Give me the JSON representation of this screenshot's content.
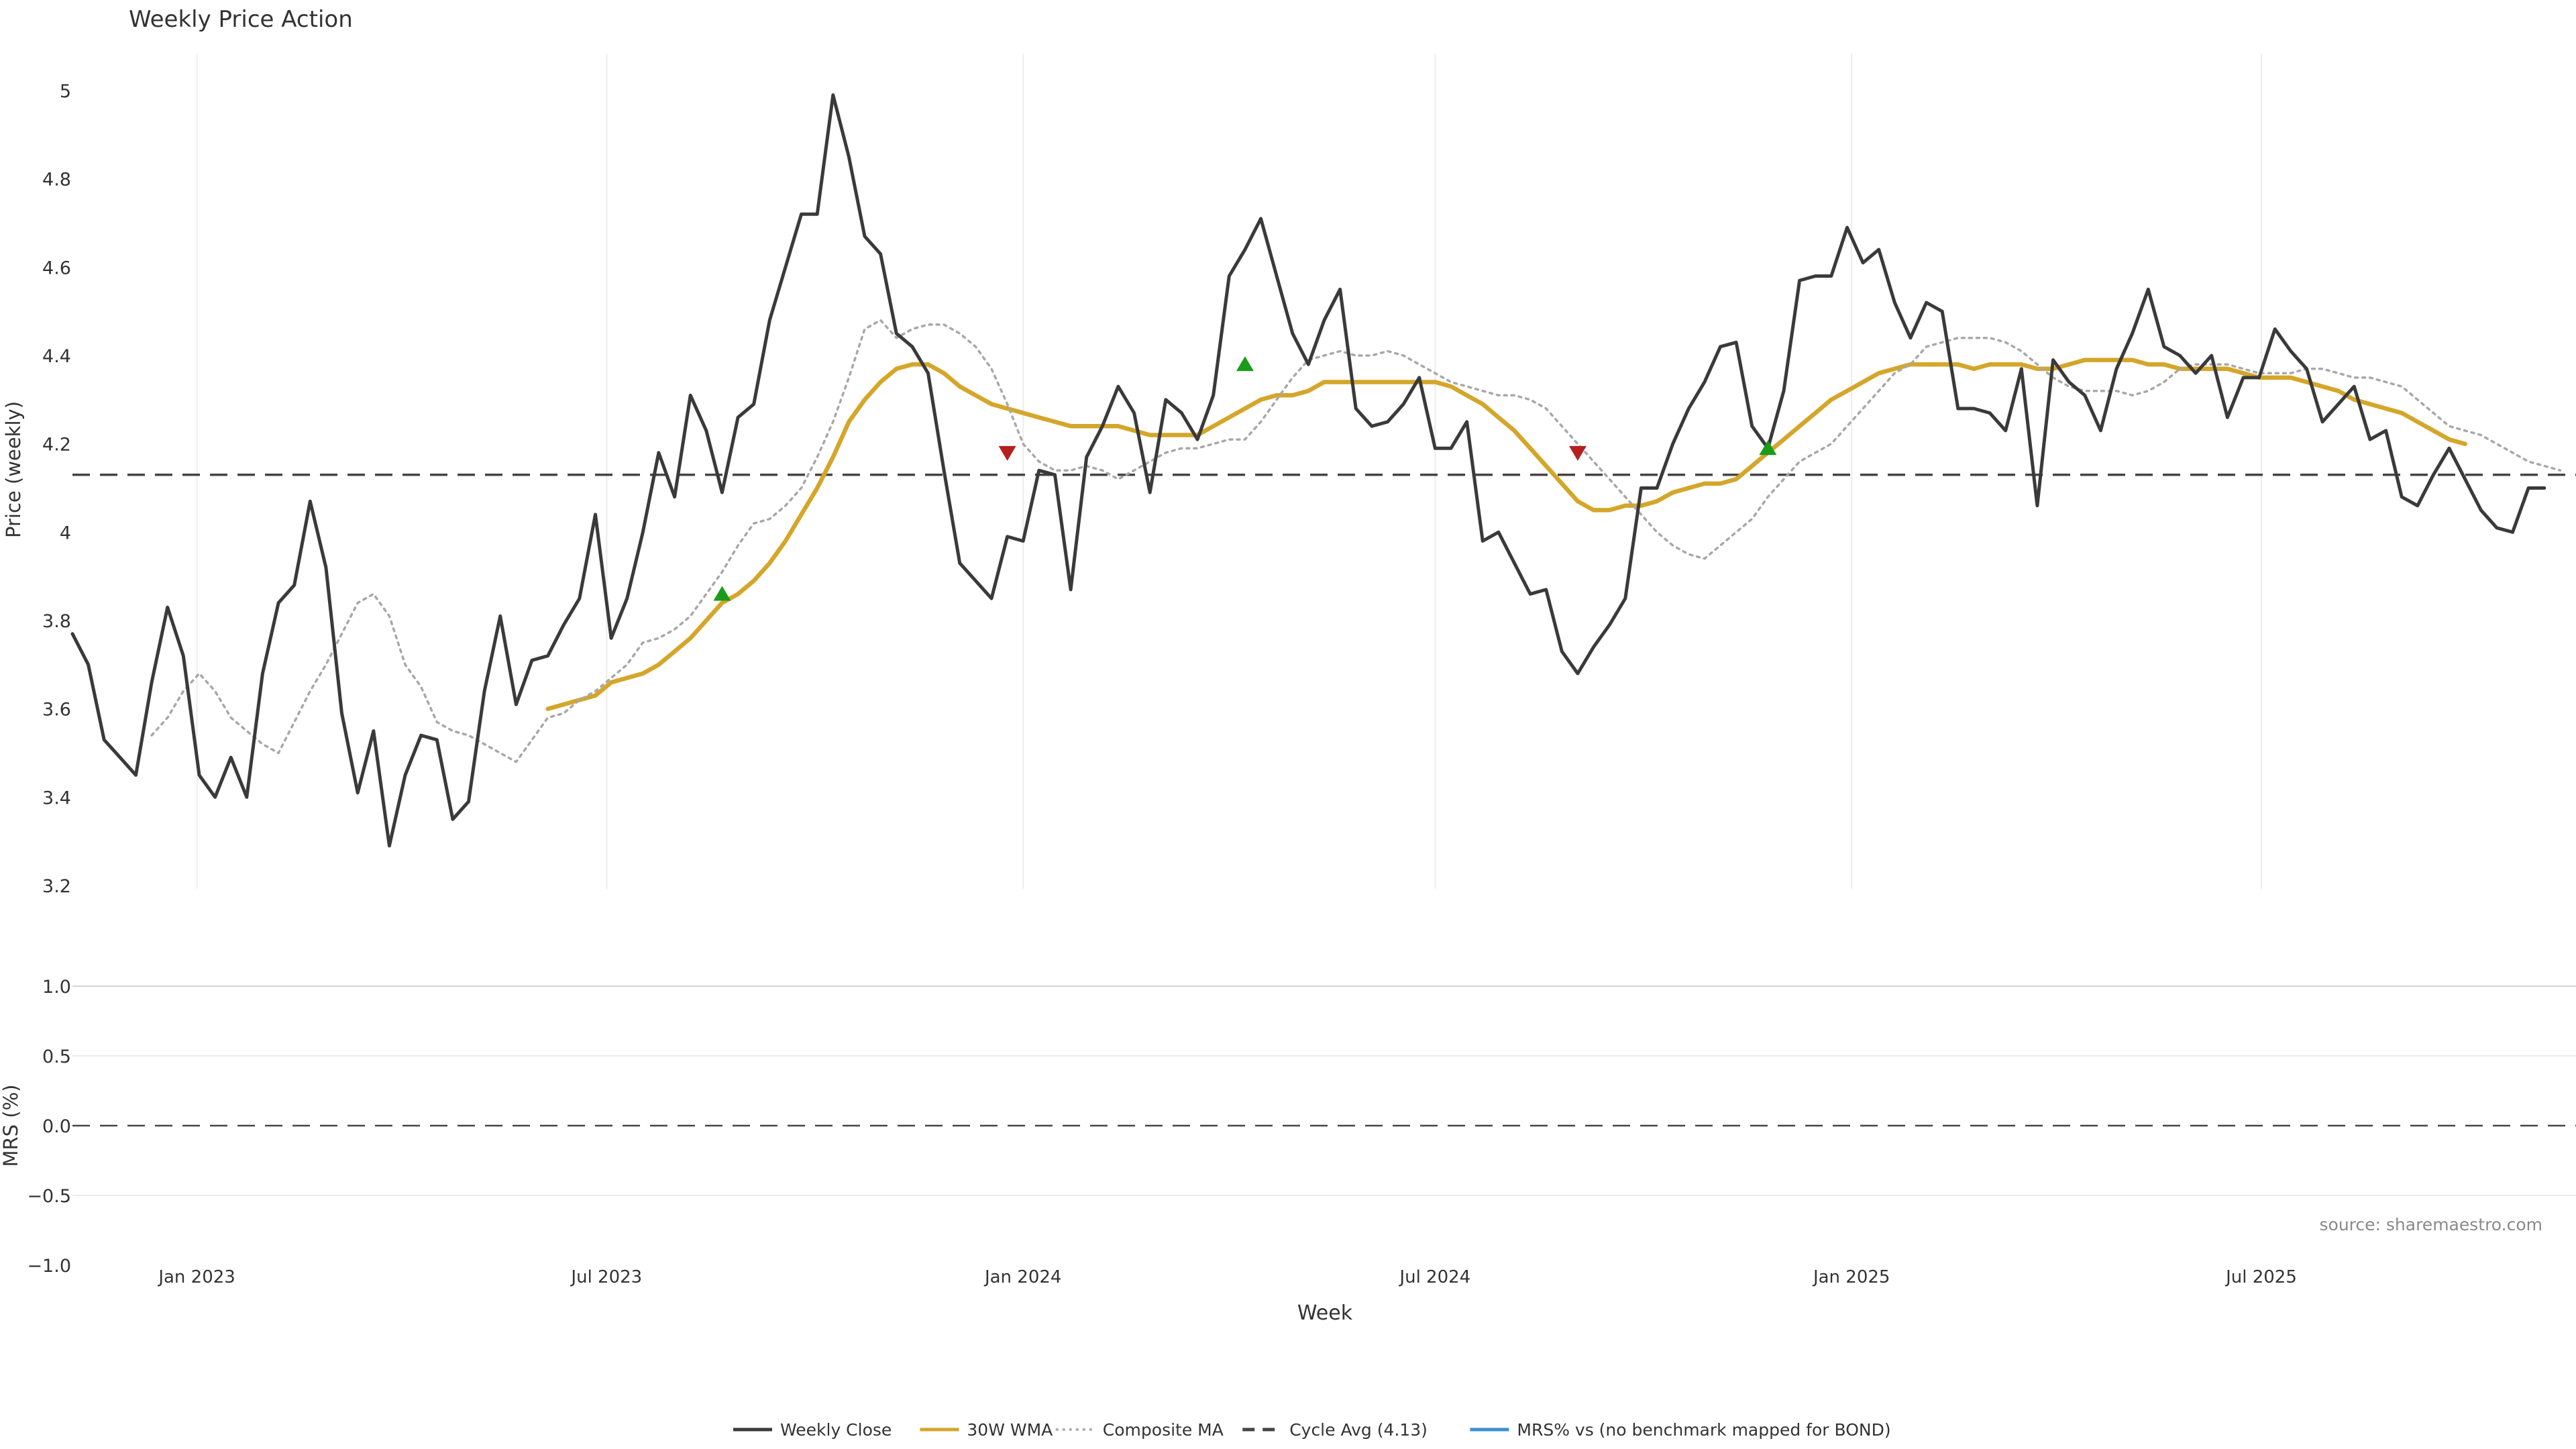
{
  "chart_data": {
    "type": "line",
    "title": "Weekly Price Action",
    "xlabel": "Week",
    "x_ticks": [
      "Jan 2023",
      "Jul 2023",
      "Jan 2024",
      "Jul 2024",
      "Jan 2025",
      "Jul 2025"
    ],
    "x_range": [
      "2022-11-07",
      "2025-11-17"
    ],
    "price_panel": {
      "ylabel": "Price (weekly)",
      "ylim": [
        3.2,
        5.0
      ],
      "y_ticks": [
        "5",
        "4.8",
        "4.6",
        "4.4",
        "4.2",
        "4",
        "3.8",
        "3.6",
        "3.4",
        "3.2"
      ],
      "cycle_avg": 4.13,
      "series": [
        {
          "name": "Weekly Close",
          "color": "#3a3a3a",
          "style": "solid",
          "start": "2022-11-07",
          "values": [
            3.77,
            3.7,
            3.53,
            3.49,
            3.45,
            3.66,
            3.83,
            3.72,
            3.45,
            3.4,
            3.49,
            3.4,
            3.68,
            3.84,
            3.88,
            4.07,
            3.92,
            3.59,
            3.41,
            3.55,
            3.29,
            3.45,
            3.54,
            3.53,
            3.35,
            3.39,
            3.64,
            3.81,
            3.61,
            3.71,
            3.72,
            3.79,
            3.85,
            4.04,
            3.76,
            3.85,
            4.0,
            4.18,
            4.08,
            4.31,
            4.23,
            4.09,
            4.26,
            4.29,
            4.48,
            4.6,
            4.72,
            4.72,
            4.99,
            4.85,
            4.67,
            4.63,
            4.45,
            4.42,
            4.36,
            4.14,
            3.93,
            3.89,
            3.85,
            3.99,
            3.98,
            4.14,
            4.13,
            3.87,
            4.17,
            4.24,
            4.33,
            4.27,
            4.09,
            4.3,
            4.27,
            4.21,
            4.31,
            4.58,
            4.64,
            4.71,
            4.58,
            4.45,
            4.38,
            4.48,
            4.55,
            4.28,
            4.24,
            4.25,
            4.29,
            4.35,
            4.19,
            4.19,
            4.25,
            3.98,
            4.0,
            3.93,
            3.86,
            3.87,
            3.73,
            3.68,
            3.74,
            3.79,
            3.85,
            4.1,
            4.1,
            4.2,
            4.28,
            4.34,
            4.42,
            4.43,
            4.24,
            4.19,
            4.32,
            4.57,
            4.58,
            4.58,
            4.69,
            4.61,
            4.64,
            4.52,
            4.44,
            4.52,
            4.5,
            4.28,
            4.28,
            4.27,
            4.23,
            4.37,
            4.06,
            4.39,
            4.34,
            4.31,
            4.23,
            4.37,
            4.45,
            4.55,
            4.42,
            4.4,
            4.36,
            4.4,
            4.26,
            4.35,
            4.35,
            4.46,
            4.41,
            4.37,
            4.25,
            4.29,
            4.33,
            4.21,
            4.23,
            4.08,
            4.06,
            4.13,
            4.19,
            4.12,
            4.05,
            4.01,
            4.0,
            4.1,
            4.1
          ]
        },
        {
          "name": "30W WMA",
          "color": "#d4a62a",
          "style": "solid",
          "start": "2023-06-05",
          "values": [
            3.6,
            3.61,
            3.62,
            3.63,
            3.66,
            3.67,
            3.68,
            3.7,
            3.73,
            3.76,
            3.8,
            3.84,
            3.86,
            3.89,
            3.93,
            3.98,
            4.04,
            4.1,
            4.17,
            4.25,
            4.3,
            4.34,
            4.37,
            4.38,
            4.38,
            4.36,
            4.33,
            4.31,
            4.29,
            4.28,
            4.27,
            4.26,
            4.25,
            4.24,
            4.24,
            4.24,
            4.24,
            4.23,
            4.22,
            4.22,
            4.22,
            4.22,
            4.24,
            4.26,
            4.28,
            4.3,
            4.31,
            4.31,
            4.32,
            4.34,
            4.34,
            4.34,
            4.34,
            4.34,
            4.34,
            4.34,
            4.34,
            4.33,
            4.31,
            4.29,
            4.26,
            4.23,
            4.19,
            4.15,
            4.11,
            4.07,
            4.05,
            4.05,
            4.06,
            4.06,
            4.07,
            4.09,
            4.1,
            4.11,
            4.11,
            4.12,
            4.15,
            4.18,
            4.21,
            4.24,
            4.27,
            4.3,
            4.32,
            4.34,
            4.36,
            4.37,
            4.38,
            4.38,
            4.38,
            4.38,
            4.37,
            4.38,
            4.38,
            4.38,
            4.37,
            4.37,
            4.38,
            4.39,
            4.39,
            4.39,
            4.39,
            4.38,
            4.38,
            4.37,
            4.37,
            4.37,
            4.37,
            4.36,
            4.35,
            4.35,
            4.35,
            4.34,
            4.33,
            4.32,
            4.3,
            4.29,
            4.28,
            4.27,
            4.25,
            4.23,
            4.21,
            4.2
          ]
        },
        {
          "name": "Composite MA",
          "color": "#a8a8a8",
          "style": "dotted",
          "start": "2022-12-12",
          "values": [
            3.54,
            3.58,
            3.64,
            3.68,
            3.64,
            3.58,
            3.55,
            3.52,
            3.5,
            3.57,
            3.64,
            3.7,
            3.77,
            3.84,
            3.86,
            3.81,
            3.7,
            3.65,
            3.57,
            3.55,
            3.54,
            3.52,
            3.5,
            3.48,
            3.53,
            3.58,
            3.59,
            3.62,
            3.64,
            3.67,
            3.7,
            3.75,
            3.76,
            3.78,
            3.81,
            3.86,
            3.91,
            3.97,
            4.02,
            4.03,
            4.06,
            4.1,
            4.17,
            4.25,
            4.35,
            4.46,
            4.48,
            4.44,
            4.46,
            4.47,
            4.47,
            4.45,
            4.42,
            4.37,
            4.29,
            4.2,
            4.16,
            4.14,
            4.14,
            4.15,
            4.14,
            4.12,
            4.14,
            4.16,
            4.18,
            4.19,
            4.19,
            4.2,
            4.21,
            4.21,
            4.25,
            4.3,
            4.35,
            4.39,
            4.4,
            4.41,
            4.4,
            4.4,
            4.41,
            4.4,
            4.38,
            4.36,
            4.34,
            4.33,
            4.32,
            4.31,
            4.31,
            4.3,
            4.28,
            4.24,
            4.2,
            4.16,
            4.12,
            4.08,
            4.04,
            4.0,
            3.97,
            3.95,
            3.94,
            3.97,
            4.0,
            4.03,
            4.08,
            4.12,
            4.16,
            4.18,
            4.2,
            4.24,
            4.28,
            4.32,
            4.36,
            4.38,
            4.42,
            4.43,
            4.44,
            4.44,
            4.44,
            4.43,
            4.41,
            4.38,
            4.35,
            4.33,
            4.32,
            4.32,
            4.32,
            4.31,
            4.32,
            4.34,
            4.37,
            4.38,
            4.38,
            4.38,
            4.37,
            4.36,
            4.36,
            4.36,
            4.37,
            4.37,
            4.36,
            4.35,
            4.35,
            4.34,
            4.33,
            4.3,
            4.27,
            4.24,
            4.23,
            4.22,
            4.2,
            4.18,
            4.16,
            4.15,
            4.14
          ]
        }
      ],
      "signals": [
        {
          "type": "buy",
          "date": "2023-08-21",
          "value": 3.86,
          "color": "#1a9b1a"
        },
        {
          "type": "sell",
          "date": "2023-12-25",
          "value": 4.18,
          "color": "#b51f1f"
        },
        {
          "type": "buy",
          "date": "2024-04-08",
          "value": 4.38,
          "color": "#1a9b1a"
        },
        {
          "type": "sell",
          "date": "2024-09-02",
          "value": 4.18,
          "color": "#b51f1f"
        },
        {
          "type": "buy",
          "date": "2024-11-25",
          "value": 4.19,
          "color": "#1a9b1a"
        }
      ]
    },
    "mrs_panel": {
      "ylabel": "MRS (%)",
      "ylim": [
        -1.0,
        1.0
      ],
      "y_ticks": [
        "1.0",
        "0.5",
        "0.0",
        "−0.5",
        "−1.0"
      ],
      "zero_line": 0.0,
      "series": []
    },
    "legend": {
      "placement": "bottom-center",
      "entries": [
        {
          "label": "Weekly Close",
          "color": "#3a3a3a",
          "style": "solid"
        },
        {
          "label": "30W WMA",
          "color": "#d4a62a",
          "style": "solid"
        },
        {
          "label": "Composite MA",
          "color": "#a8a8a8",
          "style": "dotted"
        },
        {
          "label": "Cycle Avg (4.13)",
          "color": "#444444",
          "style": "dashed"
        },
        {
          "label": "MRS% vs (no benchmark mapped for BOND)",
          "color": "#3a8fd1",
          "style": "solid"
        }
      ]
    },
    "source": "source: sharemaestro.com",
    "grid": true
  }
}
